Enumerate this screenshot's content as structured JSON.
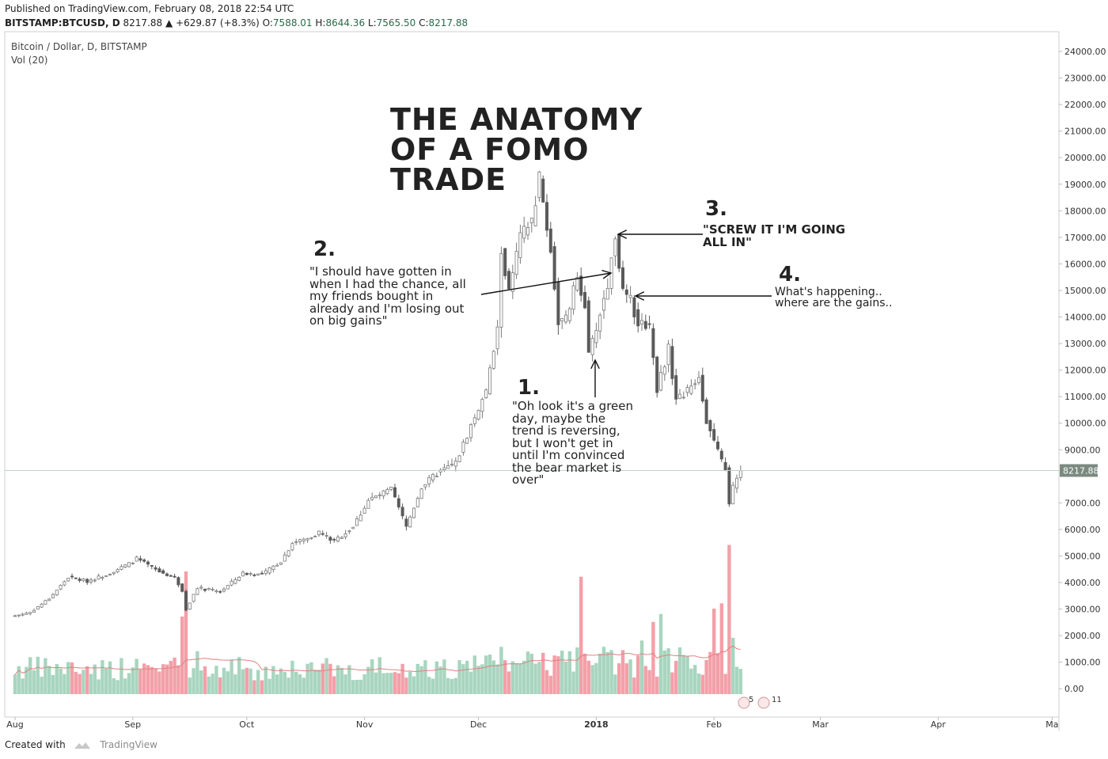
{
  "header": {
    "published": "Published on TradingView.com, February 08, 2018 22:54 UTC",
    "symbol": "BITSTAMP:BTCUSD, D",
    "last": "8217.88",
    "change_arrow": "▲",
    "change": "+629.87 (+8.3%)",
    "o_label": "O:",
    "o_value": "7588.01",
    "h_label": "H:",
    "h_value": "8644.36",
    "l_label": "L:",
    "l_value": "7565.50",
    "c_label": "C:",
    "c_value": "8217.88"
  },
  "pane": {
    "title": "Bitcoin / Dollar, D, BITSTAMP",
    "volume_label": "Vol (20)"
  },
  "annotations": {
    "title": "THE ANATOMY\nOF A FOMO\nTRADE",
    "n1": "1.",
    "t1": "\"Oh look it's a green\nday, maybe the\ntrend is reversing,\nbut I won't get in\nuntil I'm convinced\nthe bear market is\nover\"",
    "n2": "2.",
    "t2": "\"I should have gotten in\nwhen I had the chance, all\nmy friends bought in\nalready and I'm losing out\non big gains\"",
    "n3": "3.",
    "t3": "\"SCREW IT I'M GOING\nALL IN\"",
    "n4": "4.",
    "t4": "What's happening..\nwhere are the gains.."
  },
  "footer": {
    "created_with": "Created with",
    "brand": "TradingView"
  },
  "badges": {
    "b1": "5",
    "b2": "11"
  },
  "colors": {
    "up": "#7a7a7a",
    "down": "#5a5a5a",
    "vol_up": "#a8d5bf",
    "vol_down": "#f2a0a8",
    "ma": "#e08080",
    "price_tag": "#7a8a80",
    "last_line": "#bcd3c7"
  },
  "chart_data": {
    "type": "candlestick",
    "title": "Bitcoin / Dollar, D, BITSTAMP",
    "y_axis": {
      "ticks": [
        "24000.00",
        "23000.00",
        "22000.00",
        "21000.00",
        "20000.00",
        "19000.00",
        "18000.00",
        "17000.00",
        "16000.00",
        "15000.00",
        "14000.00",
        "13000.00",
        "12000.00",
        "11000.00",
        "10000.00",
        "9000.00",
        "8000.00",
        "7000.00",
        "6000.00",
        "5000.00",
        "4000.00",
        "3000.00",
        "2000.00",
        "1000.00",
        "0.00"
      ]
    },
    "x_axis": {
      "ticks": [
        "Aug",
        "Sep",
        "Oct",
        "Nov",
        "Dec",
        "2018",
        "Feb",
        "Mar",
        "Apr",
        "Ma"
      ]
    },
    "last_price": "8217.88",
    "price_waypoints": [
      [
        "2017-08-01",
        2750
      ],
      [
        "2017-08-05",
        2880
      ],
      [
        "2017-08-10",
        3400
      ],
      [
        "2017-08-15",
        4200
      ],
      [
        "2017-08-20",
        4050
      ],
      [
        "2017-08-25",
        4300
      ],
      [
        "2017-08-31",
        4700
      ],
      [
        "2017-09-02",
        4900
      ],
      [
        "2017-09-08",
        4400
      ],
      [
        "2017-09-12",
        4200
      ],
      [
        "2017-09-14",
        3700
      ],
      [
        "2017-09-15",
        3000
      ],
      [
        "2017-09-18",
        3800
      ],
      [
        "2017-09-24",
        3650
      ],
      [
        "2017-09-30",
        4350
      ],
      [
        "2017-10-05",
        4300
      ],
      [
        "2017-10-10",
        4800
      ],
      [
        "2017-10-13",
        5500
      ],
      [
        "2017-10-17",
        5650
      ],
      [
        "2017-10-20",
        5900
      ],
      [
        "2017-10-24",
        5550
      ],
      [
        "2017-10-29",
        6100
      ],
      [
        "2017-11-02",
        7100
      ],
      [
        "2017-11-08",
        7500
      ],
      [
        "2017-11-12",
        6100
      ],
      [
        "2017-11-16",
        7600
      ],
      [
        "2017-11-20",
        8100
      ],
      [
        "2017-11-25",
        8500
      ],
      [
        "2017-11-29",
        9900
      ],
      [
        "2017-12-03",
        11200
      ],
      [
        "2017-12-06",
        13500
      ],
      [
        "2017-12-07",
        16500
      ],
      [
        "2017-12-09",
        14900
      ],
      [
        "2017-12-12",
        17000
      ],
      [
        "2017-12-15",
        17600
      ],
      [
        "2017-12-17",
        19200
      ],
      [
        "2017-12-20",
        16500
      ],
      [
        "2017-12-22",
        13800
      ],
      [
        "2017-12-24",
        13900
      ],
      [
        "2017-12-27",
        15500
      ],
      [
        "2017-12-29",
        14500
      ],
      [
        "2017-12-30",
        12500
      ],
      [
        "2018-01-01",
        13600
      ],
      [
        "2018-01-04",
        15200
      ],
      [
        "2018-01-06",
        17100
      ],
      [
        "2018-01-08",
        14900
      ],
      [
        "2018-01-10",
        14600
      ],
      [
        "2018-01-12",
        13800
      ],
      [
        "2018-01-15",
        13700
      ],
      [
        "2018-01-17",
        11300
      ],
      [
        "2018-01-20",
        12800
      ],
      [
        "2018-01-22",
        10900
      ],
      [
        "2018-01-25",
        11200
      ],
      [
        "2018-01-28",
        11800
      ],
      [
        "2018-01-30",
        10100
      ],
      [
        "2018-02-02",
        8900
      ],
      [
        "2018-02-04",
        8300
      ],
      [
        "2018-02-05",
        6900
      ],
      [
        "2018-02-06",
        7600
      ],
      [
        "2018-02-08",
        8217.88
      ]
    ],
    "volume_ma_period": 20
  }
}
